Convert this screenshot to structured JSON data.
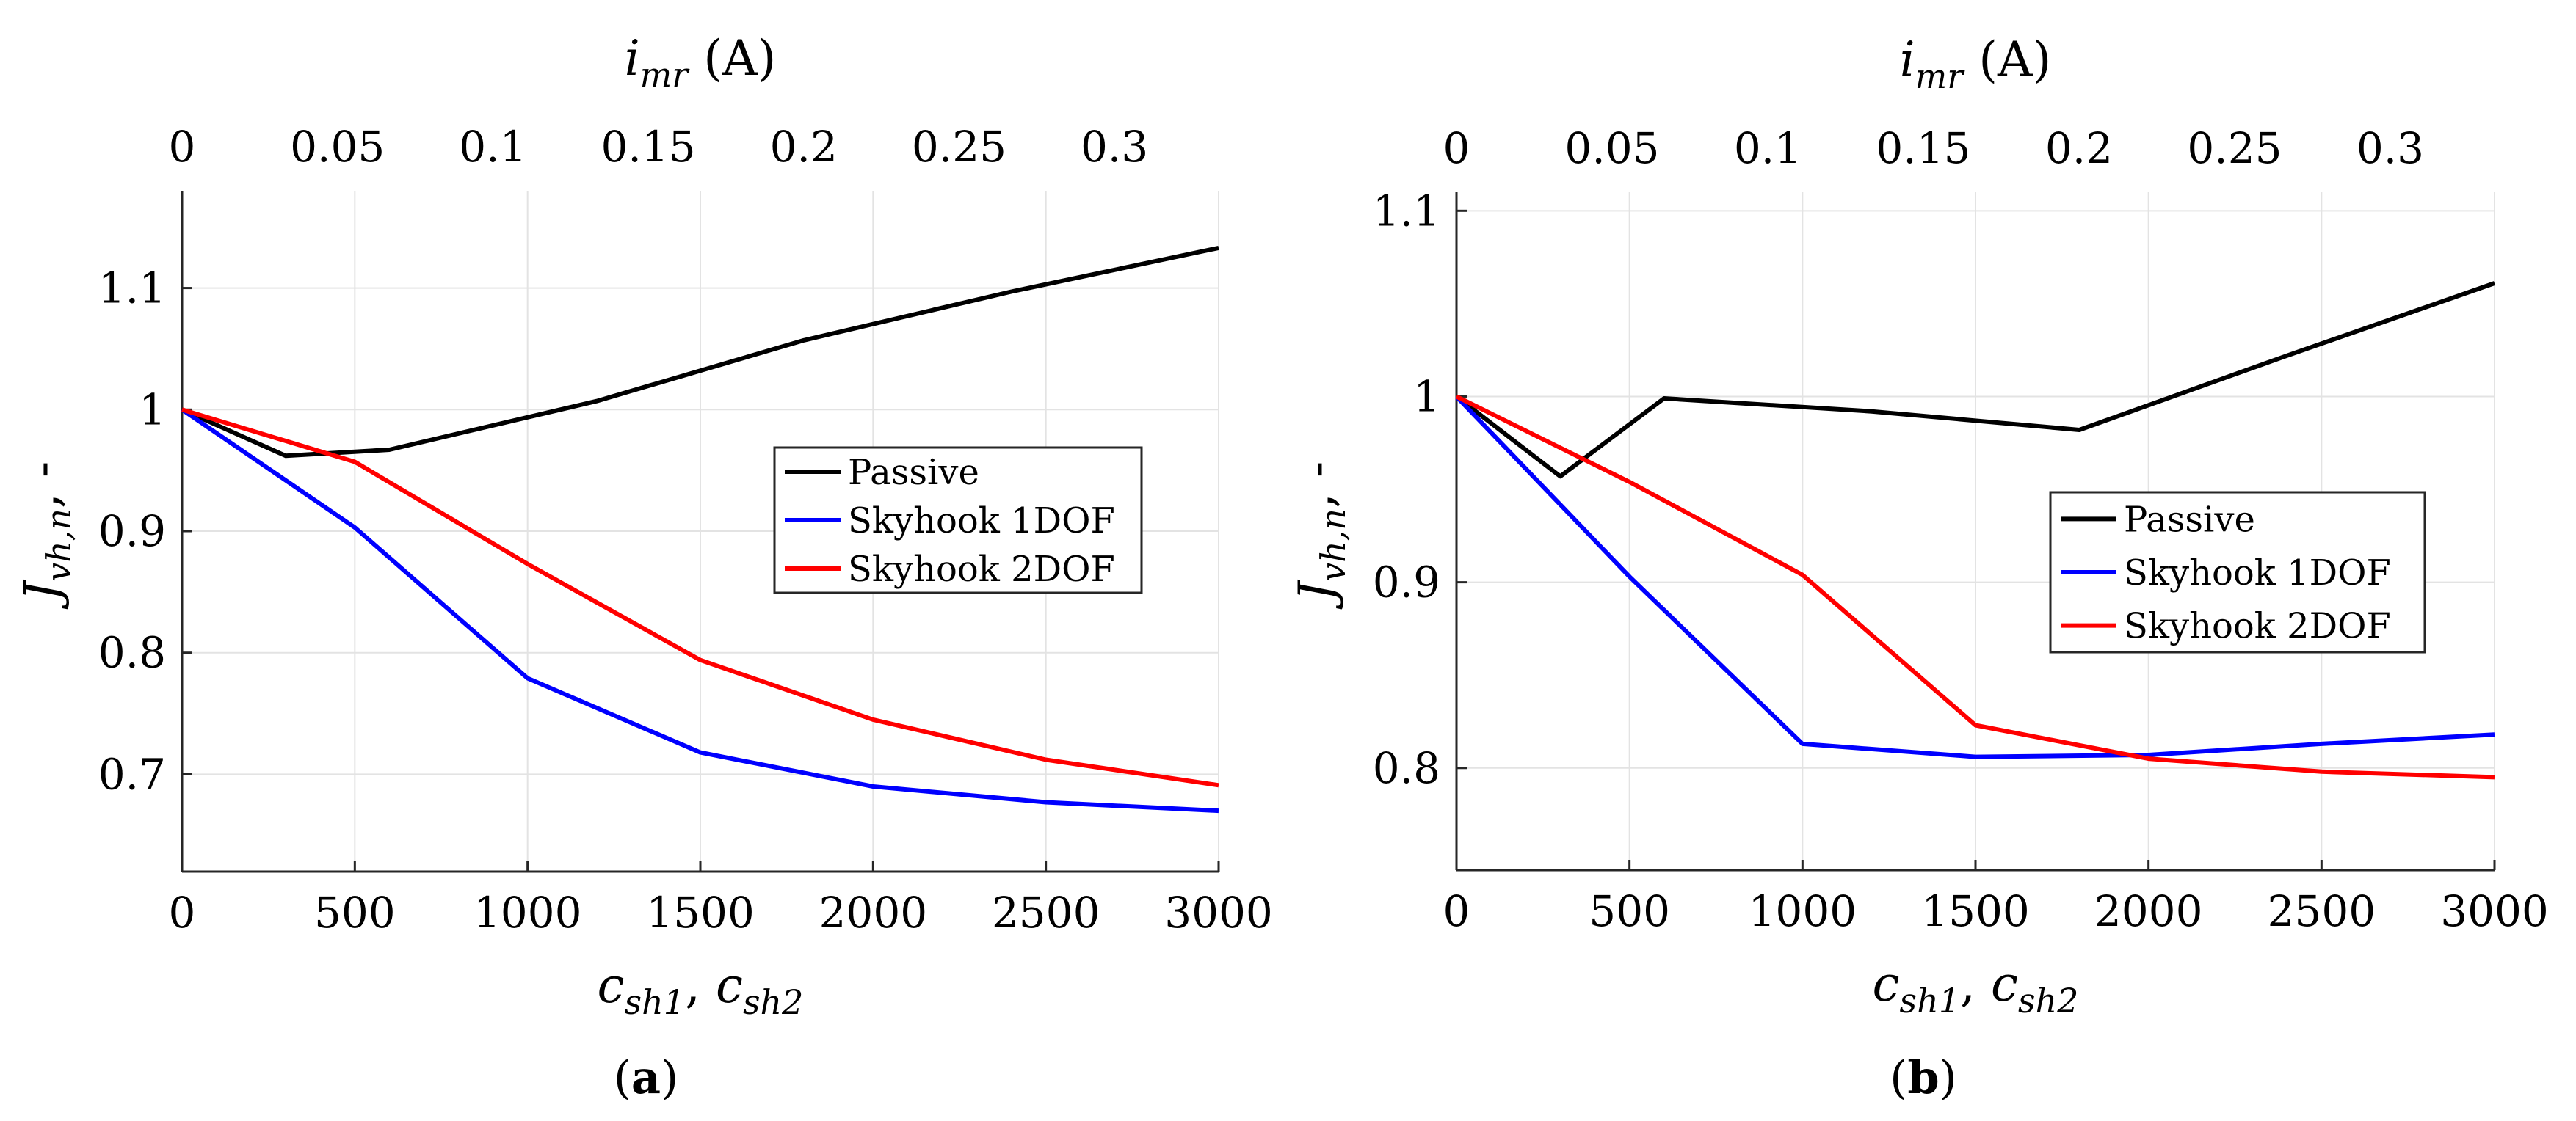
{
  "chart_data": [
    {
      "type": "line",
      "panel": "a",
      "caption_open": "(",
      "caption_letter": "a",
      "caption_close": ")",
      "xlabel": "c_sh1, c_sh2",
      "xlabel_parts": [
        "c",
        "sh1",
        ", ",
        "c",
        "sh2"
      ],
      "ylabel": "J_vh,n, -",
      "ylabel_parts": [
        "J",
        "vh,n",
        ", -"
      ],
      "top_xlabel": "i_mr (A)",
      "top_xlabel_parts": [
        "i",
        "mr",
        " (A)"
      ],
      "xlim": [
        0,
        3000
      ],
      "ylim": [
        0.62,
        1.18
      ],
      "xticks": [
        0,
        500,
        1000,
        1500,
        2000,
        2500,
        3000
      ],
      "xtick_labels": [
        "0",
        "500",
        "1000",
        "1500",
        "2000",
        "2500",
        "3000"
      ],
      "yticks": [
        0.7,
        0.8,
        0.9,
        1.0,
        1.1
      ],
      "ytick_labels": [
        "0.7",
        "0.8",
        "0.9",
        "1",
        "1.1"
      ],
      "top_xlim": [
        0,
        0.3335
      ],
      "top_xticks": [
        0,
        0.05,
        0.1,
        0.15,
        0.2,
        0.25,
        0.3
      ],
      "top_xtick_labels": [
        "0",
        "0.05",
        "0.1",
        "0.15",
        "0.2",
        "0.25",
        "0.3"
      ],
      "grid": true,
      "legend_position": "center-right",
      "series": [
        {
          "name": "Passive",
          "color": "#000000",
          "x": [
            0,
            300,
            600,
            1200,
            1800,
            2400,
            3000
          ],
          "y": [
            1.0,
            0.962,
            0.967,
            1.007,
            1.057,
            1.097,
            1.133
          ]
        },
        {
          "name": "Skyhook 1DOF",
          "color": "#0000ff",
          "x": [
            0,
            500,
            1000,
            1500,
            2000,
            2500,
            3000
          ],
          "y": [
            1.0,
            0.903,
            0.779,
            0.718,
            0.69,
            0.677,
            0.67
          ]
        },
        {
          "name": "Skyhook 2DOF",
          "color": "#ff0000",
          "x": [
            0,
            500,
            1000,
            1500,
            2000,
            2500,
            3000
          ],
          "y": [
            1.0,
            0.957,
            0.873,
            0.794,
            0.745,
            0.712,
            0.691
          ]
        }
      ]
    },
    {
      "type": "line",
      "panel": "b",
      "caption_open": "(",
      "caption_letter": "b",
      "caption_close": ")",
      "xlabel": "c_sh1, c_sh2",
      "xlabel_parts": [
        "c",
        "sh1",
        ", ",
        "c",
        "sh2"
      ],
      "ylabel": "J_vh,n, -",
      "ylabel_parts": [
        "J",
        "vh,n",
        ", -"
      ],
      "top_xlabel": "i_mr (A)",
      "top_xlabel_parts": [
        "i",
        "mr",
        " (A)"
      ],
      "xlim": [
        0,
        3000
      ],
      "ylim": [
        0.745,
        1.11
      ],
      "xticks": [
        0,
        500,
        1000,
        1500,
        2000,
        2500,
        3000
      ],
      "xtick_labels": [
        "0",
        "500",
        "1000",
        "1500",
        "2000",
        "2500",
        "3000"
      ],
      "yticks": [
        0.8,
        0.9,
        1.0,
        1.1
      ],
      "ytick_labels": [
        "0.8",
        "0.9",
        "1",
        "1.1"
      ],
      "top_xlim": [
        0,
        0.3335
      ],
      "top_xticks": [
        0,
        0.05,
        0.1,
        0.15,
        0.2,
        0.25,
        0.3
      ],
      "top_xtick_labels": [
        "0",
        "0.05",
        "0.1",
        "0.15",
        "0.2",
        "0.25",
        "0.3"
      ],
      "grid": true,
      "legend_position": "center-right",
      "series": [
        {
          "name": "Passive",
          "color": "#000000",
          "x": [
            0,
            300,
            600,
            1200,
            1800,
            2400,
            3000
          ],
          "y": [
            1.0,
            0.957,
            0.999,
            0.992,
            0.982,
            1.022,
            1.061
          ]
        },
        {
          "name": "Skyhook 1DOF",
          "color": "#0000ff",
          "x": [
            0,
            500,
            1000,
            1500,
            2000,
            2500,
            3000
          ],
          "y": [
            1.0,
            0.903,
            0.813,
            0.806,
            0.807,
            0.813,
            0.818
          ]
        },
        {
          "name": "Skyhook 2DOF",
          "color": "#ff0000",
          "x": [
            0,
            500,
            1000,
            1500,
            2000,
            2500,
            3000
          ],
          "y": [
            1.0,
            0.954,
            0.904,
            0.823,
            0.805,
            0.798,
            0.795
          ]
        }
      ]
    }
  ]
}
